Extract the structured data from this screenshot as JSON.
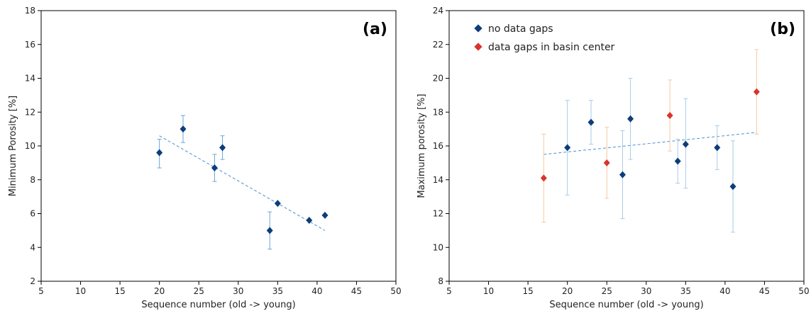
{
  "chart_data": [
    {
      "type": "scatter",
      "panel_label": "(a)",
      "xlabel": "Sequence number (old -> young)",
      "ylabel": "Minimum Porosity [%]",
      "xlim": [
        5,
        50
      ],
      "ylim": [
        2,
        18
      ],
      "xticks": [
        5,
        10,
        15,
        20,
        25,
        30,
        35,
        40,
        45,
        50
      ],
      "yticks": [
        2,
        4,
        6,
        8,
        10,
        12,
        14,
        16,
        18
      ],
      "grid": false,
      "series": [
        {
          "marker_color": "#0d3d7a",
          "error_color": "#6aa6d6",
          "points": [
            {
              "x": 20,
              "y": 9.6,
              "err_low": 0.9,
              "err_high": 0.8
            },
            {
              "x": 23,
              "y": 11.0,
              "err_low": 0.8,
              "err_high": 0.8
            },
            {
              "x": 27,
              "y": 8.7,
              "err_low": 0.8,
              "err_high": 0.8
            },
            {
              "x": 28,
              "y": 9.9,
              "err_low": 0.7,
              "err_high": 0.7
            },
            {
              "x": 34,
              "y": 5.0,
              "err_low": 1.1,
              "err_high": 1.1
            },
            {
              "x": 35,
              "y": 6.6,
              "err_low": 0,
              "err_high": 0
            },
            {
              "x": 39,
              "y": 5.6,
              "err_low": 0,
              "err_high": 0
            },
            {
              "x": 41,
              "y": 5.9,
              "err_low": 0,
              "err_high": 0
            }
          ]
        }
      ],
      "trendline": {
        "x": [
          20,
          41
        ],
        "y": [
          10.6,
          5.0
        ],
        "color": "#4a90d0"
      }
    },
    {
      "type": "scatter",
      "panel_label": "(b)",
      "xlabel": "Sequence number (old -> young)",
      "ylabel": "Maximum porosity [%]",
      "xlim": [
        5,
        50
      ],
      "ylim": [
        8,
        24
      ],
      "xticks": [
        5,
        10,
        15,
        20,
        25,
        30,
        35,
        40,
        45,
        50
      ],
      "yticks": [
        8,
        10,
        12,
        14,
        16,
        18,
        20,
        22,
        24
      ],
      "grid": false,
      "legend_position": "top-left",
      "series": [
        {
          "name": "no data gaps",
          "marker_color": "#0d3d7a",
          "error_color": "#a9cbe6",
          "points": [
            {
              "x": 20,
              "y": 15.9,
              "err_low": 2.8,
              "err_high": 2.8
            },
            {
              "x": 23,
              "y": 17.4,
              "err_low": 1.3,
              "err_high": 1.3
            },
            {
              "x": 27,
              "y": 14.3,
              "err_low": 2.6,
              "err_high": 2.6
            },
            {
              "x": 28,
              "y": 17.6,
              "err_low": 2.4,
              "err_high": 2.4
            },
            {
              "x": 34,
              "y": 15.1,
              "err_low": 1.3,
              "err_high": 1.3
            },
            {
              "x": 35,
              "y": 16.1,
              "err_low": 2.6,
              "err_high": 2.7
            },
            {
              "x": 39,
              "y": 15.9,
              "err_low": 1.3,
              "err_high": 1.3
            },
            {
              "x": 41,
              "y": 13.6,
              "err_low": 2.7,
              "err_high": 2.7
            }
          ]
        },
        {
          "name": "data gaps in basin center",
          "marker_color": "#d9342b",
          "error_color": "#f5c9a3",
          "points": [
            {
              "x": 17,
              "y": 14.1,
              "err_low": 2.6,
              "err_high": 2.6
            },
            {
              "x": 25,
              "y": 15.0,
              "err_low": 2.1,
              "err_high": 2.1
            },
            {
              "x": 33,
              "y": 17.8,
              "err_low": 2.1,
              "err_high": 2.1
            },
            {
              "x": 44,
              "y": 19.2,
              "err_low": 2.5,
              "err_high": 2.5
            }
          ]
        }
      ],
      "trendline": {
        "x": [
          17,
          44
        ],
        "y": [
          15.5,
          16.8
        ],
        "color": "#4a90d0"
      }
    }
  ]
}
